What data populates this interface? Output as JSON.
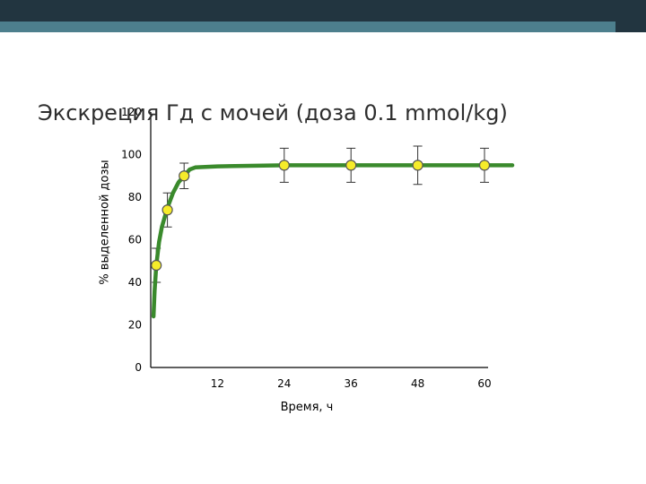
{
  "slide": {
    "title": "Экскреция Гд с мочей (доза  0.1 mmol/kg)"
  },
  "colors": {
    "band_dark": "#223540",
    "band_teal": "#4d7f8d",
    "curve": "#3a8a2c",
    "marker_fill": "#f6ec2a",
    "marker_stroke": "#555555"
  },
  "chart_data": {
    "type": "line",
    "title": "",
    "xlabel": "Время, ч",
    "ylabel": "% выделенной дозы",
    "xlim": [
      0,
      60
    ],
    "ylim": [
      0,
      120
    ],
    "x_ticks": [
      12,
      24,
      36,
      48,
      60
    ],
    "y_ticks": [
      0,
      20,
      40,
      60,
      80,
      100,
      120
    ],
    "grid": false,
    "legend": "none",
    "points": [
      {
        "x": 1,
        "y": 48,
        "err": 8
      },
      {
        "x": 3,
        "y": 74,
        "err": 8
      },
      {
        "x": 6,
        "y": 90,
        "err": 6
      },
      {
        "x": 24,
        "y": 95,
        "err": 8
      },
      {
        "x": 36,
        "y": 95,
        "err": 8
      },
      {
        "x": 48,
        "y": 95,
        "err": 9
      },
      {
        "x": 60,
        "y": 95,
        "err": 8
      }
    ],
    "curve": [
      {
        "x": 0.5,
        "y": 24
      },
      {
        "x": 0.7,
        "y": 36
      },
      {
        "x": 1,
        "y": 48
      },
      {
        "x": 1.5,
        "y": 59
      },
      {
        "x": 2,
        "y": 66
      },
      {
        "x": 3,
        "y": 75
      },
      {
        "x": 4,
        "y": 82
      },
      {
        "x": 5,
        "y": 87
      },
      {
        "x": 6,
        "y": 90
      },
      {
        "x": 7,
        "y": 93
      },
      {
        "x": 8,
        "y": 94
      },
      {
        "x": 12,
        "y": 94.5
      },
      {
        "x": 24,
        "y": 95
      },
      {
        "x": 36,
        "y": 95
      },
      {
        "x": 48,
        "y": 95
      },
      {
        "x": 60,
        "y": 95
      },
      {
        "x": 65,
        "y": 95
      }
    ]
  }
}
